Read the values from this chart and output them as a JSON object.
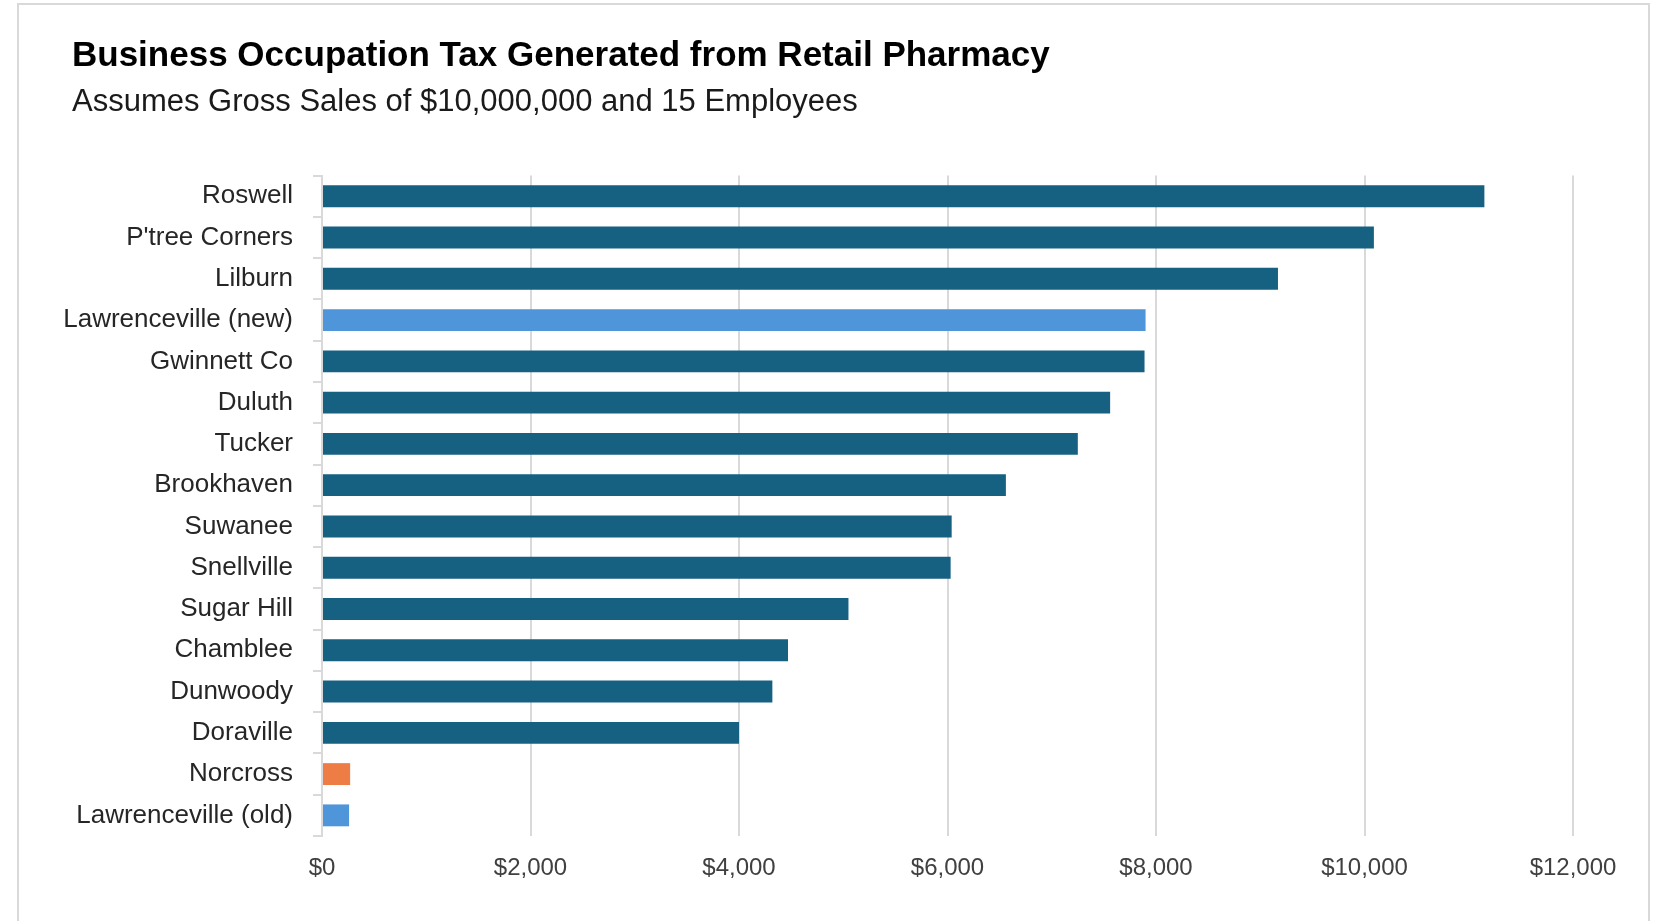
{
  "chart_data": {
    "type": "bar",
    "orientation": "horizontal",
    "title": "Business Occupation Tax Generated from Retail Pharmacy",
    "subtitle": "Assumes Gross Sales of $10,000,000 and 15 Employees",
    "categories": [
      "Roswell",
      "P'tree Corners",
      "Lilburn",
      "Lawrenceville (new)",
      "Gwinnett Co",
      "Duluth",
      "Tucker",
      "Brookhaven",
      "Suwanee",
      "Snellville",
      "Sugar Hill",
      "Chamblee",
      "Dunwoody",
      "Doraville",
      "Norcross",
      "Lawrenceville (old)"
    ],
    "values": [
      11150,
      10090,
      9170,
      7900,
      7890,
      7560,
      7250,
      6560,
      6040,
      6030,
      5050,
      4470,
      4320,
      4000,
      270,
      260
    ],
    "colors": [
      "#166082",
      "#166082",
      "#166082",
      "#4e95d9",
      "#166082",
      "#166082",
      "#166082",
      "#166082",
      "#166082",
      "#166082",
      "#166082",
      "#166082",
      "#166082",
      "#166082",
      "#ed7d45",
      "#4e95d9"
    ],
    "xlim": [
      0,
      12000
    ],
    "xticks": [
      {
        "value": 0,
        "label": "$0"
      },
      {
        "value": 2000,
        "label": "$2,000"
      },
      {
        "value": 4000,
        "label": "$4,000"
      },
      {
        "value": 6000,
        "label": "$6,000"
      },
      {
        "value": 8000,
        "label": "$8,000"
      },
      {
        "value": 10000,
        "label": "$10,000"
      },
      {
        "value": 12000,
        "label": "$12,000"
      }
    ],
    "grid": "x",
    "legend": false
  }
}
